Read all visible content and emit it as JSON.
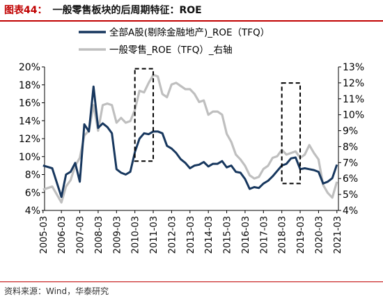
{
  "figure": {
    "label": "图表44：",
    "title": "一般零售板块的后周期特征：ROE",
    "source": "资料来源：Wind，华泰研究"
  },
  "chart_data": {
    "type": "line",
    "title": "一般零售板块的后周期特征：ROE",
    "x_ticks": [
      "2005-03",
      "2006-03",
      "2007-03",
      "2008-03",
      "2009-03",
      "2010-03",
      "2011-03",
      "2012-03",
      "2013-03",
      "2014-03",
      "2015-03",
      "2016-03",
      "2017-03",
      "2018-03",
      "2019-03",
      "2020-03",
      "2021-03"
    ],
    "y_left": {
      "ticks": [
        "4%",
        "6%",
        "8%",
        "10%",
        "12%",
        "14%",
        "16%",
        "18%",
        "20%"
      ],
      "range": [
        4,
        20
      ],
      "unit": "%"
    },
    "y_right": {
      "ticks": [
        "4%",
        "5%",
        "6%",
        "7%",
        "8%",
        "9%",
        "10%",
        "11%",
        "12%",
        "13%"
      ],
      "range": [
        4,
        13
      ],
      "unit": "%"
    },
    "grid": false,
    "legend": "top",
    "series": [
      {
        "name": "全部A股(剔除金融地产)_ROE（TFQ）",
        "color": "#17375e",
        "axis": "left",
        "points": [
          [
            "2005-03",
            9.0
          ],
          [
            "2005-09",
            8.7
          ],
          [
            "2006-03",
            5.5
          ],
          [
            "2006-06",
            8.0
          ],
          [
            "2006-09",
            8.3
          ],
          [
            "2006-12",
            9.3
          ],
          [
            "2007-03",
            7.2
          ],
          [
            "2007-06",
            13.6
          ],
          [
            "2007-09",
            12.8
          ],
          [
            "2007-12",
            17.8
          ],
          [
            "2008-03",
            13.2
          ],
          [
            "2008-06",
            13.7
          ],
          [
            "2008-09",
            13.3
          ],
          [
            "2008-12",
            12.6
          ],
          [
            "2009-03",
            8.6
          ],
          [
            "2009-06",
            8.2
          ],
          [
            "2009-09",
            8.0
          ],
          [
            "2009-12",
            8.3
          ],
          [
            "2010-03",
            10.5
          ],
          [
            "2010-06",
            12.0
          ],
          [
            "2010-09",
            12.6
          ],
          [
            "2010-12",
            12.5
          ],
          [
            "2011-03",
            12.8
          ],
          [
            "2011-06",
            12.8
          ],
          [
            "2011-09",
            12.6
          ],
          [
            "2011-12",
            11.2
          ],
          [
            "2012-03",
            10.9
          ],
          [
            "2012-06",
            10.4
          ],
          [
            "2012-09",
            9.7
          ],
          [
            "2012-12",
            9.3
          ],
          [
            "2013-03",
            8.7
          ],
          [
            "2013-06",
            9.0
          ],
          [
            "2013-09",
            9.1
          ],
          [
            "2013-12",
            9.4
          ],
          [
            "2014-03",
            8.9
          ],
          [
            "2014-06",
            9.2
          ],
          [
            "2014-09",
            9.2
          ],
          [
            "2014-12",
            9.5
          ],
          [
            "2015-03",
            8.8
          ],
          [
            "2015-06",
            9.0
          ],
          [
            "2015-09",
            8.3
          ],
          [
            "2015-12",
            8.2
          ],
          [
            "2016-03",
            7.5
          ],
          [
            "2016-06",
            6.4
          ],
          [
            "2016-09",
            6.6
          ],
          [
            "2016-12",
            6.5
          ],
          [
            "2017-03",
            7.0
          ],
          [
            "2017-06",
            7.3
          ],
          [
            "2017-09",
            7.8
          ],
          [
            "2017-12",
            8.4
          ],
          [
            "2018-03",
            9.0
          ],
          [
            "2018-06",
            9.2
          ],
          [
            "2018-09",
            9.8
          ],
          [
            "2018-12",
            9.9
          ],
          [
            "2019-03",
            8.6
          ],
          [
            "2019-06",
            8.7
          ],
          [
            "2019-09",
            8.6
          ],
          [
            "2019-12",
            8.5
          ],
          [
            "2020-03",
            8.3
          ],
          [
            "2020-06",
            7.0
          ],
          [
            "2020-09",
            7.2
          ],
          [
            "2020-12",
            7.6
          ],
          [
            "2021-03",
            9.1
          ]
        ]
      },
      {
        "name": "一般零售_ROE（TFQ）_右轴",
        "color": "#bfbfbf",
        "axis": "right",
        "points": [
          [
            "2005-03",
            5.3
          ],
          [
            "2005-09",
            5.5
          ],
          [
            "2006-03",
            4.5
          ],
          [
            "2006-06",
            5.5
          ],
          [
            "2006-09",
            5.9
          ],
          [
            "2006-12",
            6.8
          ],
          [
            "2007-03",
            7.3
          ],
          [
            "2007-06",
            8.7
          ],
          [
            "2007-09",
            9.0
          ],
          [
            "2007-12",
            10.6
          ],
          [
            "2008-03",
            9.0
          ],
          [
            "2008-06",
            10.6
          ],
          [
            "2008-09",
            10.7
          ],
          [
            "2008-12",
            10.6
          ],
          [
            "2009-03",
            9.5
          ],
          [
            "2009-06",
            9.8
          ],
          [
            "2009-09",
            9.5
          ],
          [
            "2009-12",
            9.6
          ],
          [
            "2010-03",
            10.3
          ],
          [
            "2010-06",
            11.5
          ],
          [
            "2010-09",
            11.4
          ],
          [
            "2010-12",
            12.0
          ],
          [
            "2011-03",
            12.5
          ],
          [
            "2011-06",
            12.4
          ],
          [
            "2011-09",
            11.3
          ],
          [
            "2011-12",
            11.1
          ],
          [
            "2012-03",
            11.9
          ],
          [
            "2012-06",
            12.0
          ],
          [
            "2012-09",
            11.8
          ],
          [
            "2012-12",
            11.6
          ],
          [
            "2013-03",
            11.6
          ],
          [
            "2013-06",
            11.3
          ],
          [
            "2013-09",
            10.8
          ],
          [
            "2013-12",
            10.9
          ],
          [
            "2014-03",
            10.0
          ],
          [
            "2014-06",
            10.2
          ],
          [
            "2014-09",
            10.2
          ],
          [
            "2014-12",
            10.0
          ],
          [
            "2015-03",
            8.8
          ],
          [
            "2015-06",
            8.3
          ],
          [
            "2015-09",
            7.5
          ],
          [
            "2015-12",
            7.2
          ],
          [
            "2016-03",
            6.8
          ],
          [
            "2016-06",
            6.2
          ],
          [
            "2016-09",
            6.0
          ],
          [
            "2016-12",
            6.1
          ],
          [
            "2017-03",
            6.6
          ],
          [
            "2017-06",
            6.8
          ],
          [
            "2017-09",
            7.3
          ],
          [
            "2017-12",
            7.4
          ],
          [
            "2018-03",
            7.8
          ],
          [
            "2018-06",
            7.5
          ],
          [
            "2018-09",
            7.6
          ],
          [
            "2018-12",
            7.7
          ],
          [
            "2019-03",
            7.3
          ],
          [
            "2019-06",
            7.5
          ],
          [
            "2019-09",
            8.1
          ],
          [
            "2019-12",
            7.6
          ],
          [
            "2020-03",
            7.2
          ],
          [
            "2020-06",
            5.6
          ],
          [
            "2020-09",
            5.1
          ],
          [
            "2020-12",
            4.8
          ],
          [
            "2021-03",
            5.8
          ]
        ]
      }
    ],
    "annotations": [
      {
        "type": "dashed-box",
        "x_range": [
          "2010-03",
          "2011-03"
        ],
        "y_range_left": [
          9.5,
          19.8
        ]
      },
      {
        "type": "dashed-box",
        "x_range": [
          "2018-03",
          "2019-03"
        ],
        "y_range_left": [
          7.0,
          18.2
        ]
      }
    ]
  }
}
